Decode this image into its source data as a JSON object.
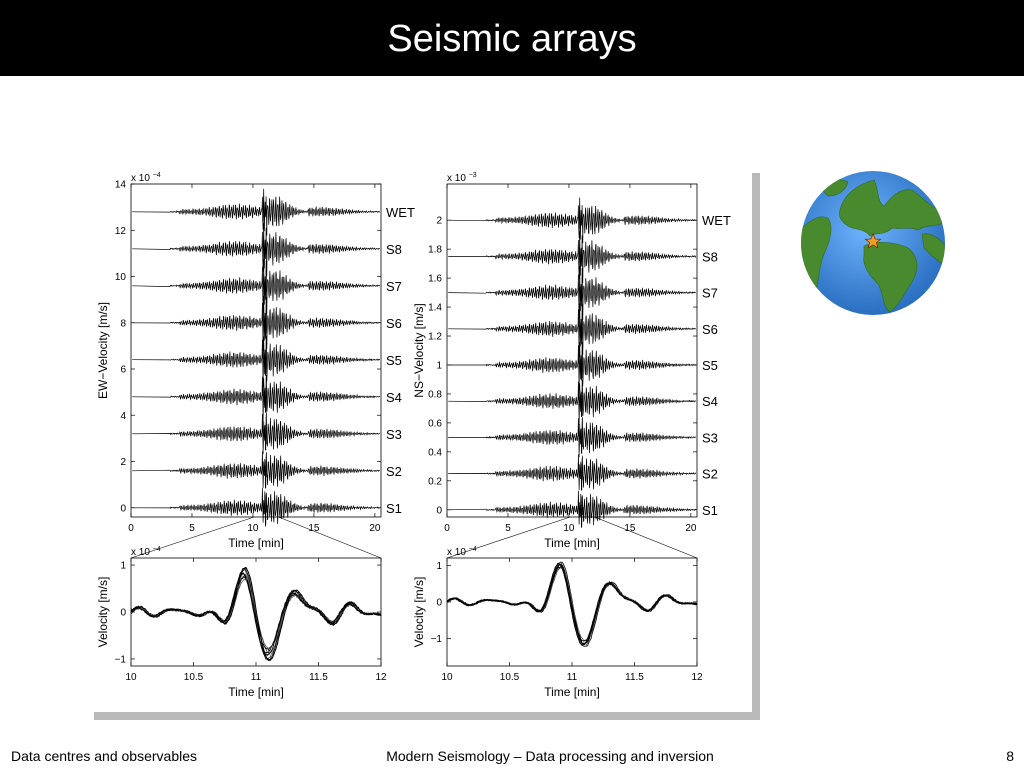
{
  "slide": {
    "title": "Seismic arrays",
    "footer_left": "Data centres and observables",
    "footer_center": "Modern Seismology – Data processing and inversion",
    "page_number": "8"
  },
  "chart_data": [
    {
      "type": "line",
      "panel": "EW full record",
      "ylabel": "EW−Velocity [m/s]",
      "xlabel": "Time [min]",
      "y_exponent": "x 10",
      "y_exponent_power": "−4",
      "xlim": [
        0,
        20.5
      ],
      "ylim": [
        -0.4,
        14
      ],
      "xticks": [
        "0",
        "5",
        "10",
        "15",
        "20"
      ],
      "yticks": [
        "0",
        "2",
        "4",
        "6",
        "8",
        "10",
        "12",
        "14"
      ],
      "station_values": [
        0,
        1.6,
        3.2,
        4.8,
        6.4,
        8.0,
        9.6,
        11.2,
        12.8
      ],
      "stations": [
        "S1",
        "S2",
        "S3",
        "S4",
        "S5",
        "S6",
        "S7",
        "S8",
        "WET"
      ]
    },
    {
      "type": "line",
      "panel": "NS full record",
      "ylabel": "NS−Velocity [m/s]",
      "xlabel": "Time [min]",
      "y_exponent": "x 10",
      "y_exponent_power": "−3",
      "xlim": [
        0,
        20.5
      ],
      "ylim": [
        -0.05,
        2.25
      ],
      "xticks": [
        "0",
        "5",
        "10",
        "15",
        "20"
      ],
      "yticks": [
        "0",
        "0.2",
        "0.4",
        "0.6",
        "0.8",
        "1",
        "1.2",
        "1.4",
        "1.6",
        "1.8",
        "2"
      ],
      "station_values": [
        0,
        0.25,
        0.5,
        0.75,
        1.0,
        1.25,
        1.5,
        1.75,
        2.0
      ],
      "stations": [
        "S1",
        "S2",
        "S3",
        "S4",
        "S5",
        "S6",
        "S7",
        "S8",
        "WET"
      ]
    },
    {
      "type": "line",
      "panel": "EW zoom",
      "ylabel": "Velocity [m/s]",
      "xlabel": "Time [min]",
      "y_exponent": "x 10",
      "y_exponent_power": "−4",
      "xlim": [
        10,
        12
      ],
      "ylim": [
        -1.15,
        1.15
      ],
      "xticks": [
        "10",
        "10.5",
        "11",
        "11.5",
        "12"
      ],
      "yticks": [
        "−1",
        "0",
        "1"
      ]
    },
    {
      "type": "line",
      "panel": "NS zoom",
      "ylabel": "Velocity [m/s]",
      "xlabel": "Time [min]",
      "y_exponent": "x 10",
      "y_exponent_power": "−4",
      "xlim": [
        10,
        12
      ],
      "ylim": [
        -1.75,
        1.2
      ],
      "xticks": [
        "10",
        "10.5",
        "11",
        "11.5",
        "12"
      ],
      "yticks": [
        "−1",
        "0",
        "1"
      ]
    }
  ],
  "globe": {
    "ocean_color": "#3d8fe0",
    "land_color": "#4a8a2e",
    "marker_color": "#f0a020"
  }
}
